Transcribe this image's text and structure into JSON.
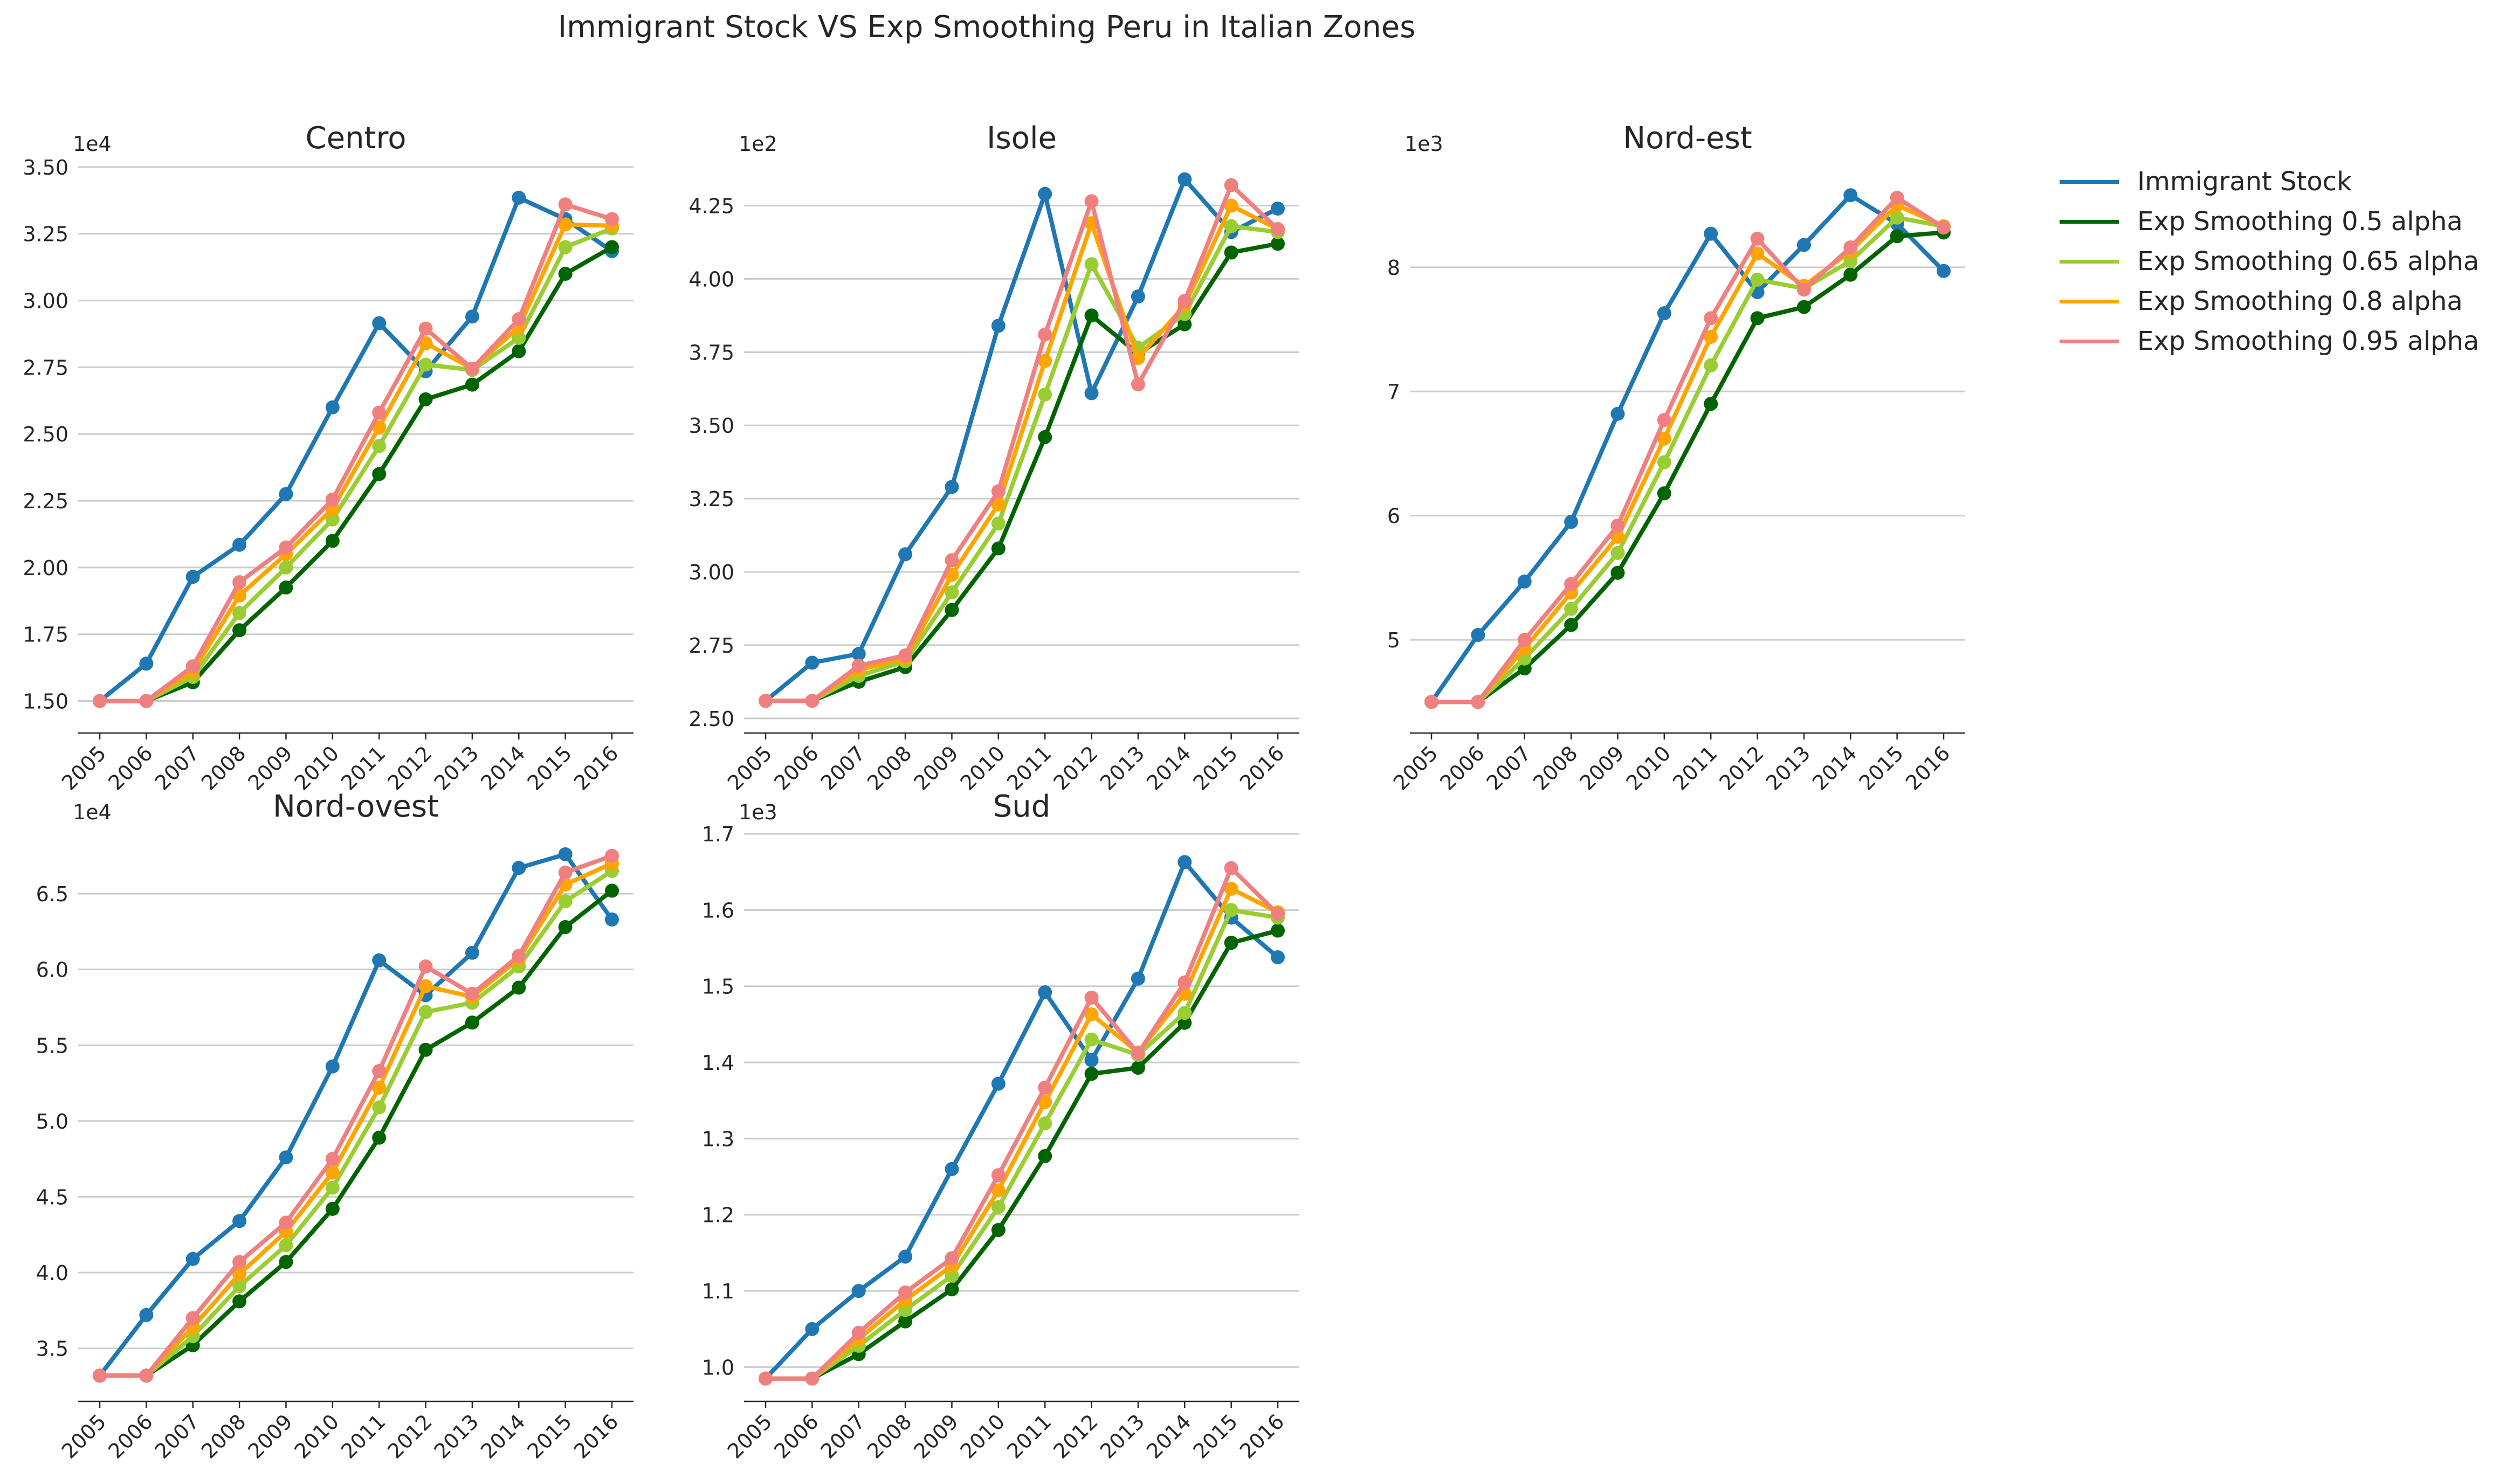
{
  "title": "Immigrant Stock VS Exp Smoothing Peru in Italian Zones",
  "legend": [
    {
      "label": "Immigrant Stock",
      "color": "#1f77b4"
    },
    {
      "label": "Exp Smoothing 0.5 alpha",
      "color": "#006400"
    },
    {
      "label": "Exp Smoothing 0.65 alpha",
      "color": "#9acd32"
    },
    {
      "label": "Exp Smoothing 0.8 alpha",
      "color": "#ffa500"
    },
    {
      "label": "Exp Smoothing 0.95 alpha",
      "color": "#f08080"
    }
  ],
  "chart_data": [
    {
      "type": "line",
      "title": "Centro",
      "offset_label": "1e4",
      "x": [
        "2005",
        "2006",
        "2007",
        "2008",
        "2009",
        "2010",
        "2011",
        "2012",
        "2013",
        "2014",
        "2015",
        "2016"
      ],
      "ylim": [
        1.38,
        3.52
      ],
      "yticks": [
        1.5,
        1.75,
        2.0,
        2.25,
        2.5,
        2.75,
        3.0,
        3.25,
        3.5
      ],
      "ytick_labels": [
        "1.50",
        "1.75",
        "2.00",
        "2.25",
        "2.50",
        "2.75",
        "3.00",
        "3.25",
        "3.50"
      ],
      "grid": "horizontal",
      "series": [
        {
          "name": "Immigrant Stock",
          "color": "#1f77b4",
          "values": [
            1.5,
            1.64,
            1.965,
            2.085,
            2.275,
            2.6,
            2.915,
            2.735,
            2.94,
            3.385,
            3.305,
            3.185
          ]
        },
        {
          "name": "Exp Smoothing 0.5 alpha",
          "color": "#006400",
          "values": [
            1.5,
            1.5,
            1.57,
            1.765,
            1.925,
            2.1,
            2.35,
            2.63,
            2.685,
            2.81,
            3.1,
            3.2
          ]
        },
        {
          "name": "Exp Smoothing 0.65 alpha",
          "color": "#9acd32",
          "values": [
            1.5,
            1.5,
            1.59,
            1.83,
            2.0,
            2.18,
            2.455,
            2.76,
            2.74,
            2.86,
            3.2,
            3.27
          ]
        },
        {
          "name": "Exp Smoothing 0.8 alpha",
          "color": "#ffa500",
          "values": [
            1.5,
            1.5,
            1.61,
            1.895,
            2.05,
            2.22,
            2.525,
            2.84,
            2.745,
            2.9,
            3.285,
            3.28
          ]
        },
        {
          "name": "Exp Smoothing 0.95 alpha",
          "color": "#f08080",
          "values": [
            1.5,
            1.5,
            1.63,
            1.945,
            2.075,
            2.255,
            2.58,
            2.895,
            2.745,
            2.93,
            3.36,
            3.305
          ]
        }
      ]
    },
    {
      "type": "line",
      "title": "Isole",
      "offset_label": "1e2",
      "x": [
        "2005",
        "2006",
        "2007",
        "2008",
        "2009",
        "2010",
        "2011",
        "2012",
        "2013",
        "2014",
        "2015",
        "2016"
      ],
      "ylim": [
        2.45,
        4.4
      ],
      "yticks": [
        2.5,
        2.75,
        3.0,
        3.25,
        3.5,
        3.75,
        4.0,
        4.25
      ],
      "ytick_labels": [
        "2.50",
        "2.75",
        "3.00",
        "3.25",
        "3.50",
        "3.75",
        "4.00",
        "4.25"
      ],
      "grid": "horizontal",
      "series": [
        {
          "name": "Immigrant Stock",
          "color": "#1f77b4",
          "values": [
            2.56,
            2.69,
            2.72,
            3.06,
            3.29,
            3.84,
            4.29,
            3.61,
            3.94,
            4.34,
            4.16,
            4.24
          ]
        },
        {
          "name": "Exp Smoothing 0.5 alpha",
          "color": "#006400",
          "values": [
            2.56,
            2.56,
            2.625,
            2.675,
            2.87,
            3.08,
            3.46,
            3.875,
            3.745,
            3.845,
            4.09,
            4.12
          ]
        },
        {
          "name": "Exp Smoothing 0.65 alpha",
          "color": "#9acd32",
          "values": [
            2.56,
            2.56,
            2.645,
            2.695,
            2.93,
            3.165,
            3.605,
            4.05,
            3.765,
            3.88,
            4.18,
            4.16
          ]
        },
        {
          "name": "Exp Smoothing 0.8 alpha",
          "color": "#ffa500",
          "values": [
            2.56,
            2.56,
            2.665,
            2.705,
            2.99,
            3.23,
            3.72,
            4.19,
            3.73,
            3.91,
            4.25,
            4.17
          ]
        },
        {
          "name": "Exp Smoothing 0.95 alpha",
          "color": "#f08080",
          "values": [
            2.56,
            2.56,
            2.68,
            2.715,
            3.04,
            3.275,
            3.81,
            4.265,
            3.64,
            3.925,
            4.32,
            4.17
          ]
        }
      ]
    },
    {
      "type": "line",
      "title": "Nord-est",
      "offset_label": "1e3",
      "x": [
        "2005",
        "2006",
        "2007",
        "2008",
        "2009",
        "2010",
        "2011",
        "2012",
        "2013",
        "2014",
        "2015",
        "2016"
      ],
      "ylim": [
        4.25,
        8.85
      ],
      "yticks": [
        5,
        6,
        7,
        8
      ],
      "ytick_labels": [
        "5",
        "6",
        "7",
        "8"
      ],
      "grid": "horizontal",
      "series": [
        {
          "name": "Immigrant Stock",
          "color": "#1f77b4",
          "values": [
            4.5,
            5.04,
            5.47,
            5.95,
            6.82,
            7.63,
            8.27,
            7.8,
            8.18,
            8.58,
            8.35,
            7.97
          ]
        },
        {
          "name": "Exp Smoothing 0.5 alpha",
          "color": "#006400",
          "values": [
            4.5,
            4.5,
            4.77,
            5.12,
            5.54,
            6.18,
            6.9,
            7.59,
            7.68,
            7.94,
            8.25,
            8.28
          ]
        },
        {
          "name": "Exp Smoothing 0.65 alpha",
          "color": "#9acd32",
          "values": [
            4.5,
            4.5,
            4.85,
            5.25,
            5.7,
            6.43,
            7.21,
            7.9,
            7.83,
            8.05,
            8.4,
            8.33
          ]
        },
        {
          "name": "Exp Smoothing 0.8 alpha",
          "color": "#ffa500",
          "values": [
            4.5,
            4.5,
            4.93,
            5.38,
            5.83,
            6.62,
            7.44,
            8.11,
            7.85,
            8.13,
            8.5,
            8.33
          ]
        },
        {
          "name": "Exp Smoothing 0.95 alpha",
          "color": "#f08080",
          "values": [
            4.5,
            4.5,
            5.0,
            5.45,
            5.92,
            6.77,
            7.59,
            8.23,
            7.82,
            8.16,
            8.56,
            8.32
          ]
        }
      ]
    },
    {
      "type": "line",
      "title": "Nord-ovest",
      "offset_label": "1e4",
      "x": [
        "2005",
        "2006",
        "2007",
        "2008",
        "2009",
        "2010",
        "2011",
        "2012",
        "2013",
        "2014",
        "2015",
        "2016"
      ],
      "ylim": [
        3.15,
        6.92
      ],
      "yticks": [
        3.5,
        4.0,
        4.5,
        5.0,
        5.5,
        6.0,
        6.5
      ],
      "ytick_labels": [
        "3.5",
        "4.0",
        "4.5",
        "5.0",
        "5.5",
        "6.0",
        "6.5"
      ],
      "grid": "horizontal",
      "series": [
        {
          "name": "Immigrant Stock",
          "color": "#1f77b4",
          "values": [
            3.32,
            3.72,
            4.09,
            4.34,
            4.76,
            5.36,
            6.06,
            5.83,
            6.11,
            6.67,
            6.76,
            6.33
          ]
        },
        {
          "name": "Exp Smoothing 0.5 alpha",
          "color": "#006400",
          "values": [
            3.32,
            3.32,
            3.52,
            3.81,
            4.07,
            4.42,
            4.89,
            5.47,
            5.65,
            5.88,
            6.28,
            6.52
          ]
        },
        {
          "name": "Exp Smoothing 0.65 alpha",
          "color": "#9acd32",
          "values": [
            3.32,
            3.32,
            3.58,
            3.91,
            4.18,
            4.56,
            5.09,
            5.72,
            5.78,
            6.02,
            6.45,
            6.65
          ]
        },
        {
          "name": "Exp Smoothing 0.8 alpha",
          "color": "#ffa500",
          "values": [
            3.32,
            3.32,
            3.64,
            3.99,
            4.27,
            4.66,
            5.22,
            5.89,
            5.82,
            6.07,
            6.56,
            6.7
          ]
        },
        {
          "name": "Exp Smoothing 0.95 alpha",
          "color": "#f08080",
          "values": [
            3.32,
            3.32,
            3.7,
            4.07,
            4.33,
            4.75,
            5.33,
            6.02,
            5.84,
            6.09,
            6.64,
            6.75
          ]
        }
      ]
    },
    {
      "type": "line",
      "title": "Sud",
      "offset_label": "1e3",
      "x": [
        "2005",
        "2006",
        "2007",
        "2008",
        "2009",
        "2010",
        "2011",
        "2012",
        "2013",
        "2014",
        "2015",
        "2016"
      ],
      "ylim": [
        0.955,
        1.705
      ],
      "yticks": [
        1.0,
        1.1,
        1.2,
        1.3,
        1.4,
        1.5,
        1.6,
        1.7
      ],
      "ytick_labels": [
        "1.0",
        "1.1",
        "1.2",
        "1.3",
        "1.4",
        "1.5",
        "1.6",
        "1.7"
      ],
      "grid": "horizontal",
      "series": [
        {
          "name": "Immigrant Stock",
          "color": "#1f77b4",
          "values": [
            0.985,
            1.05,
            1.1,
            1.145,
            1.26,
            1.372,
            1.492,
            1.403,
            1.51,
            1.663,
            1.59,
            1.538
          ]
        },
        {
          "name": "Exp Smoothing 0.5 alpha",
          "color": "#006400",
          "values": [
            0.985,
            0.985,
            1.017,
            1.06,
            1.102,
            1.18,
            1.277,
            1.385,
            1.393,
            1.452,
            1.557,
            1.573
          ]
        },
        {
          "name": "Exp Smoothing 0.65 alpha",
          "color": "#9acd32",
          "values": [
            0.985,
            0.985,
            1.028,
            1.075,
            1.12,
            1.21,
            1.32,
            1.43,
            1.41,
            1.465,
            1.6,
            1.59
          ]
        },
        {
          "name": "Exp Smoothing 0.8 alpha",
          "color": "#ffa500",
          "values": [
            0.985,
            0.985,
            1.037,
            1.088,
            1.133,
            1.232,
            1.348,
            1.463,
            1.413,
            1.49,
            1.628,
            1.597
          ]
        },
        {
          "name": "Exp Smoothing 0.95 alpha",
          "color": "#f08080",
          "values": [
            0.985,
            0.985,
            1.045,
            1.098,
            1.143,
            1.252,
            1.367,
            1.485,
            1.412,
            1.505,
            1.655,
            1.595
          ]
        }
      ]
    }
  ]
}
